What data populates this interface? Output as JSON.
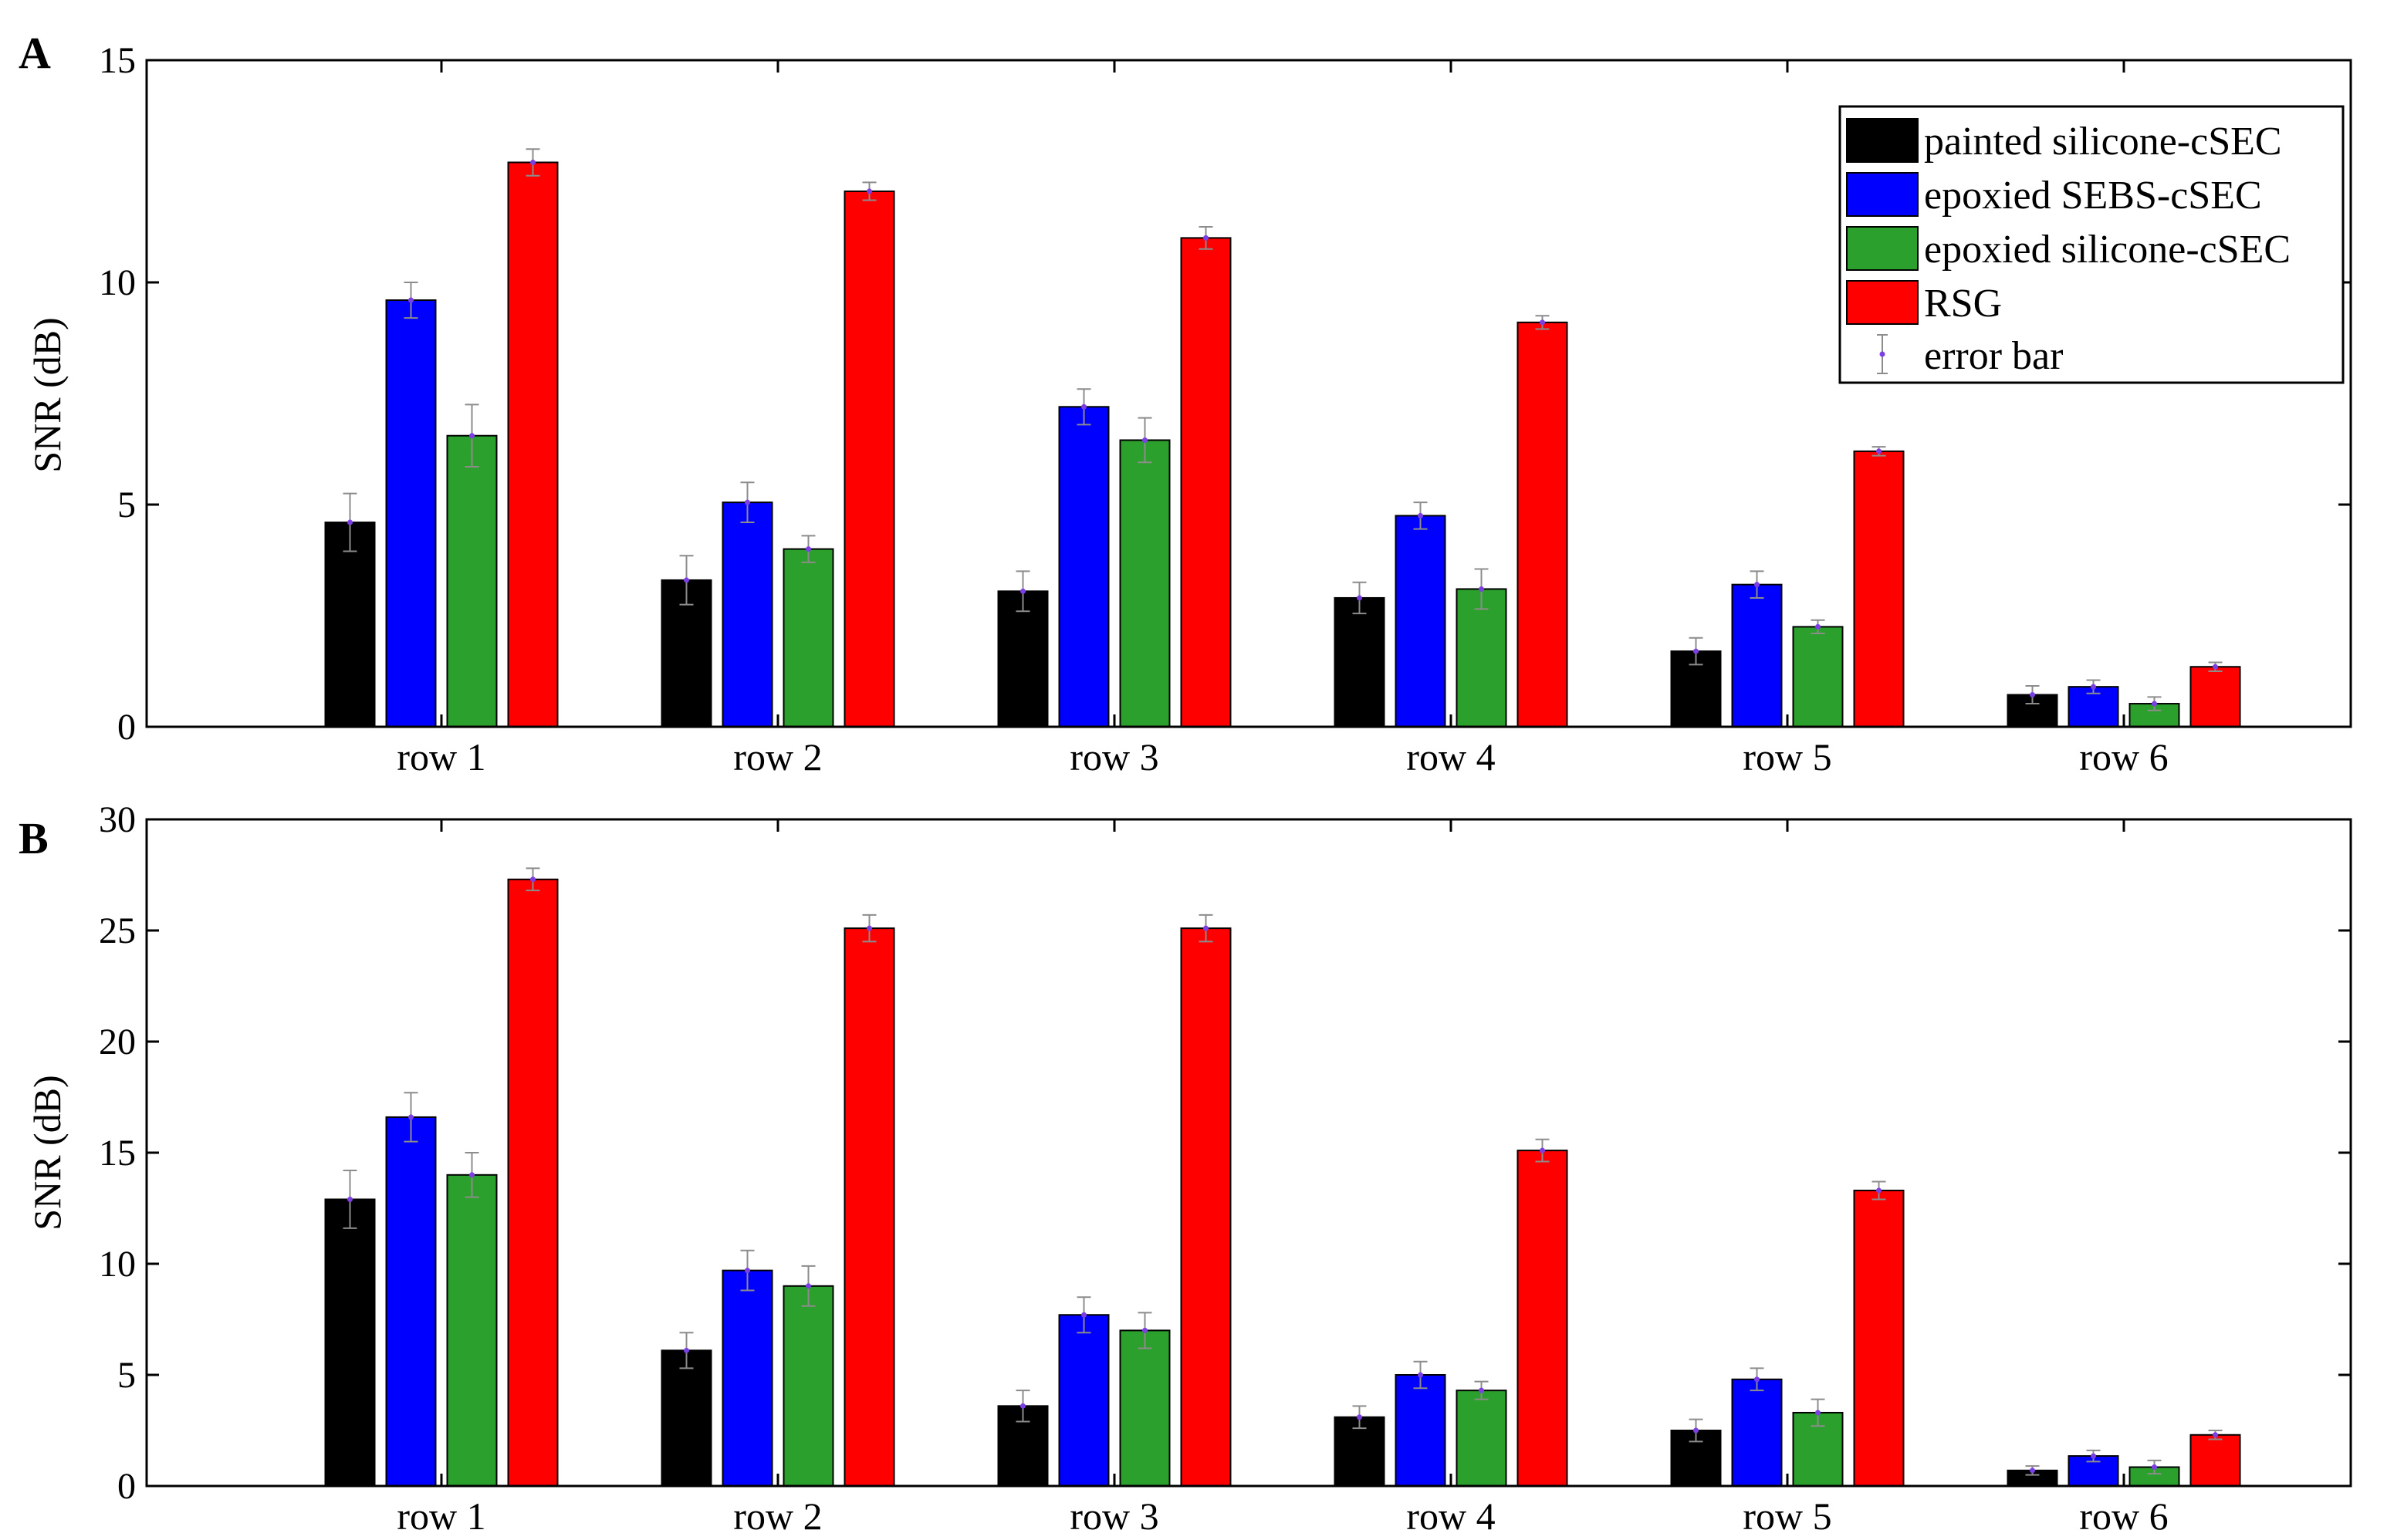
{
  "chart_data": [
    {
      "type": "bar",
      "panel_label": "A",
      "ylabel": "SNR (dB)",
      "xlabel": "",
      "ylim": [
        0,
        15
      ],
      "yticks": [
        "0",
        "5",
        "10",
        "15"
      ],
      "categories": [
        "row 1",
        "row 2",
        "row 3",
        "row 4",
        "row 5",
        "row 6"
      ],
      "series": [
        {
          "name": "painted silicone-cSEC",
          "color": "#000000",
          "values": [
            4.6,
            3.3,
            3.05,
            2.9,
            1.7,
            0.72
          ],
          "errors": [
            0.65,
            0.55,
            0.45,
            0.35,
            0.3,
            0.2
          ]
        },
        {
          "name": "epoxied SEBS-cSEC",
          "color": "#0000ff",
          "values": [
            9.6,
            5.05,
            7.2,
            4.75,
            3.2,
            0.9
          ],
          "errors": [
            0.4,
            0.45,
            0.4,
            0.3,
            0.3,
            0.15
          ]
        },
        {
          "name": "epoxied silicone-cSEC",
          "color": "#2ca02c",
          "values": [
            6.55,
            4.0,
            6.45,
            3.1,
            2.25,
            0.52
          ],
          "errors": [
            0.7,
            0.3,
            0.5,
            0.45,
            0.15,
            0.15
          ]
        },
        {
          "name": "RSG",
          "color": "#ff0000",
          "values": [
            12.7,
            12.05,
            11.0,
            9.1,
            6.2,
            1.35
          ],
          "errors": [
            0.3,
            0.2,
            0.25,
            0.15,
            0.1,
            0.1
          ]
        }
      ],
      "legend": {
        "placement": "top-right",
        "entries": [
          "painted silicone-cSEC",
          "epoxied SEBS-cSEC",
          "epoxied silicone-cSEC",
          "RSG",
          "error bar"
        ]
      }
    },
    {
      "type": "bar",
      "panel_label": "B",
      "ylabel": "SNR (dB)",
      "xlabel": "",
      "ylim": [
        0,
        30
      ],
      "yticks": [
        "0",
        "5",
        "10",
        "15",
        "20",
        "25",
        "30"
      ],
      "categories": [
        "row 1",
        "row 2",
        "row 3",
        "row 4",
        "row 5",
        "row 6"
      ],
      "series": [
        {
          "name": "painted silicone-cSEC",
          "color": "#000000",
          "values": [
            12.9,
            6.1,
            3.6,
            3.1,
            2.5,
            0.7
          ],
          "errors": [
            1.3,
            0.8,
            0.7,
            0.5,
            0.5,
            0.2
          ]
        },
        {
          "name": "epoxied SEBS-cSEC",
          "color": "#0000ff",
          "values": [
            16.6,
            9.7,
            7.7,
            5.0,
            4.8,
            1.35
          ],
          "errors": [
            1.1,
            0.9,
            0.8,
            0.6,
            0.5,
            0.25
          ]
        },
        {
          "name": "epoxied silicone-cSEC",
          "color": "#2ca02c",
          "values": [
            14.0,
            9.0,
            7.0,
            4.3,
            3.3,
            0.85
          ],
          "errors": [
            1.0,
            0.9,
            0.8,
            0.4,
            0.6,
            0.3
          ]
        },
        {
          "name": "RSG",
          "color": "#ff0000",
          "values": [
            27.3,
            25.1,
            25.1,
            15.1,
            13.3,
            2.3
          ],
          "errors": [
            0.5,
            0.6,
            0.6,
            0.5,
            0.4,
            0.2
          ]
        }
      ]
    }
  ]
}
